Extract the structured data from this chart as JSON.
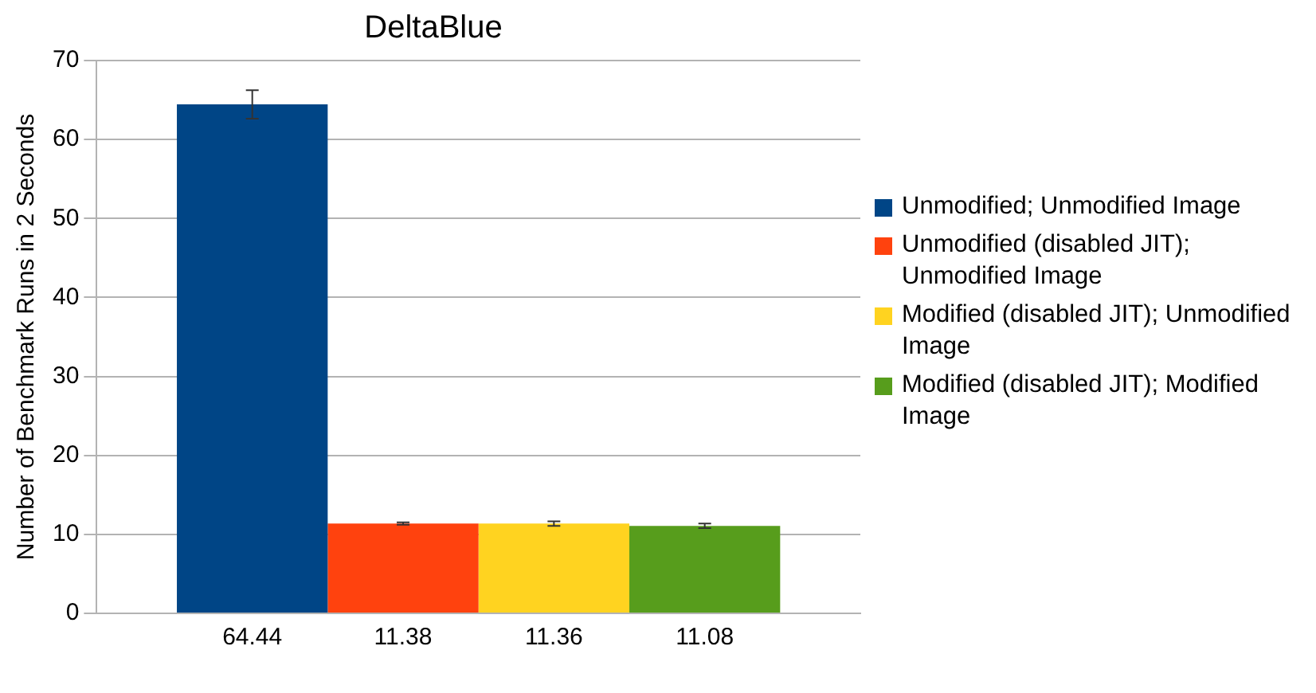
{
  "chart_data": {
    "type": "bar",
    "title": "DeltaBlue",
    "ylabel": "Number of Benchmark Runs in 2 Seconds",
    "categories": [
      null
    ],
    "series": [
      {
        "name": "Unmodified; Unmodified Image",
        "color": "#004586",
        "values": [
          64.44
        ],
        "errors": [
          1.8
        ]
      },
      {
        "name": "Unmodified (disabled JIT); Unmodified Image",
        "color": "#ff420e",
        "values": [
          11.38
        ],
        "errors": [
          0.15
        ]
      },
      {
        "name": "Modified (disabled JIT); Unmodified Image",
        "color": "#ffd320",
        "values": [
          11.36
        ],
        "errors": [
          0.3
        ]
      },
      {
        "name": "Modified (disabled JIT); Modified Image",
        "color": "#579d1c",
        "values": [
          11.08
        ],
        "errors": [
          0.3
        ]
      }
    ],
    "ylim": [
      0,
      70
    ],
    "yticks": [
      0,
      10,
      20,
      30,
      40,
      50,
      60,
      70
    ],
    "grid": "y",
    "legend": "right",
    "data_labels": true
  }
}
